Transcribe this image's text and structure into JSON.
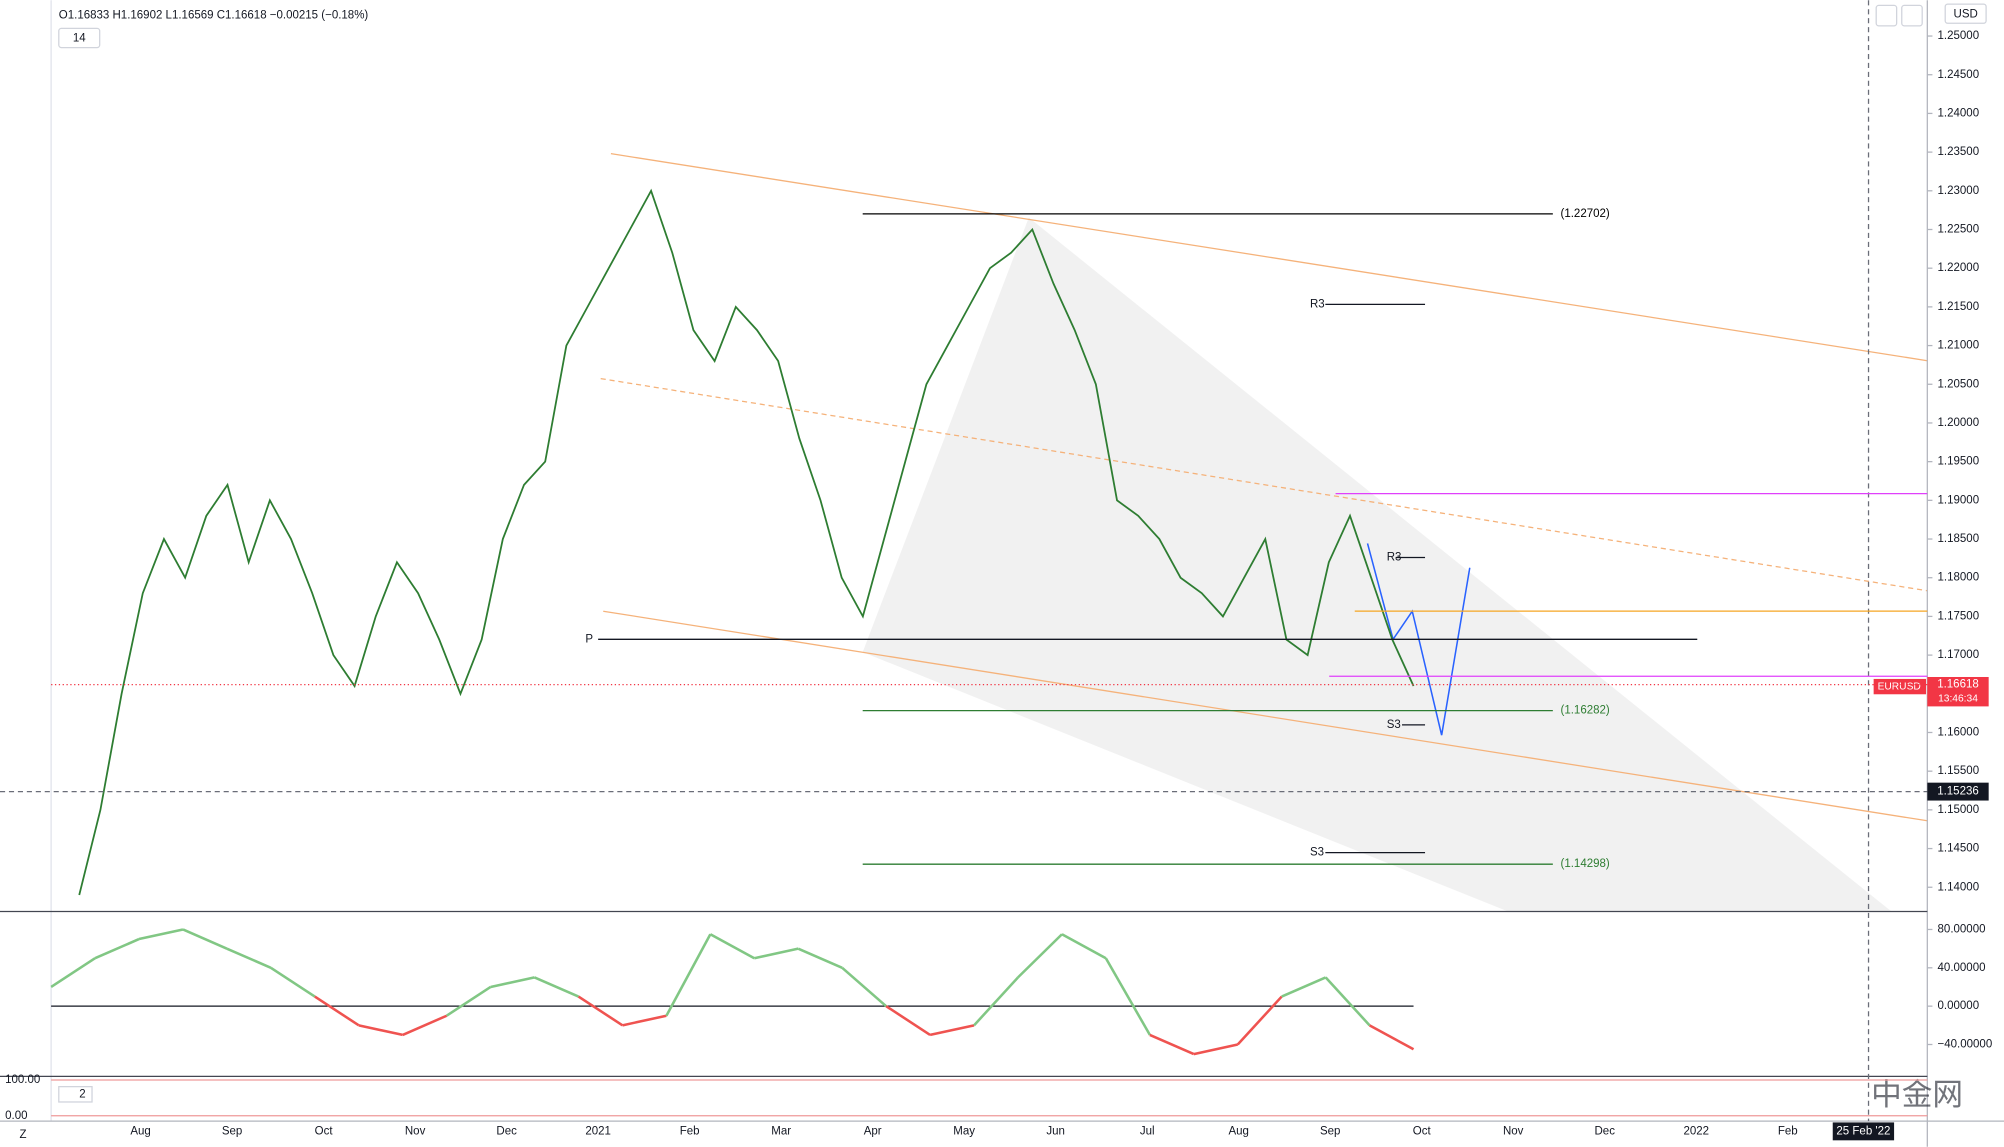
{
  "toolbar": {
    "ohlc": "O1.16833 H1.16902 L1.16569 C1.16618 −0.00215 (−0.18%)",
    "interval": "14",
    "currency": "USD",
    "corner": "Z"
  },
  "watermark": "中金网",
  "chart_data": [
    {
      "type": "line",
      "series": [
        {
          "name": "EURUSD",
          "color": "#2e7d32",
          "values": [
            1.139,
            1.15,
            1.165,
            1.178,
            1.185,
            1.18,
            1.188,
            1.192,
            1.182,
            1.19,
            1.185,
            1.178,
            1.17,
            1.166,
            1.175,
            1.182,
            1.178,
            1.172,
            1.165,
            1.172,
            1.185,
            1.192,
            1.195,
            1.21,
            1.215,
            1.22,
            1.225,
            1.23,
            1.222,
            1.212,
            1.208,
            1.215,
            1.212,
            1.208,
            1.198,
            1.19,
            1.18,
            1.175,
            1.185,
            1.195,
            1.205,
            1.21,
            1.215,
            1.22,
            1.222,
            1.225,
            1.218,
            1.212,
            1.205,
            1.19,
            1.188,
            1.185,
            1.18,
            1.178,
            1.175,
            1.18,
            1.185,
            1.172,
            1.17,
            1.182,
            1.188,
            1.18,
            1.172,
            1.166
          ]
        }
      ],
      "ylim": [
        1.13686,
        1.25462
      ],
      "yticks": [
        {
          "value": 1.14,
          "label": "1.14000"
        },
        {
          "value": 1.145,
          "label": "1.14500"
        },
        {
          "value": 1.15,
          "label": "1.15000"
        },
        {
          "value": 1.155,
          "label": "1.15500"
        },
        {
          "value": 1.16,
          "label": "1.16000"
        },
        {
          "value": 1.165,
          "label": "1.16500"
        },
        {
          "value": 1.17,
          "label": "1.17000"
        },
        {
          "value": 1.175,
          "label": "1.17500"
        },
        {
          "value": 1.18,
          "label": "1.18000"
        },
        {
          "value": 1.185,
          "label": "1.18500"
        },
        {
          "value": 1.19,
          "label": "1.19000"
        },
        {
          "value": 1.195,
          "label": "1.19500"
        },
        {
          "value": 1.2,
          "label": "1.20000"
        },
        {
          "value": 1.205,
          "label": "1.20500"
        },
        {
          "value": 1.21,
          "label": "1.21000"
        },
        {
          "value": 1.215,
          "label": "1.21500"
        },
        {
          "value": 1.22,
          "label": "1.22000"
        },
        {
          "value": 1.225,
          "label": "1.22500"
        },
        {
          "value": 1.23,
          "label": "1.23000"
        },
        {
          "value": 1.235,
          "label": "1.23500"
        },
        {
          "value": 1.24,
          "label": "1.24000"
        },
        {
          "value": 1.245,
          "label": "1.24500"
        },
        {
          "value": 1.25,
          "label": "1.25000"
        }
      ],
      "x_labels": [
        "Aug",
        "Sep",
        "Oct",
        "Nov",
        "Dec",
        "2021",
        "Feb",
        "Mar",
        "Apr",
        "May",
        "Jun",
        "Jul",
        "Aug",
        "Sep",
        "Oct",
        "Nov",
        "Dec",
        "2022",
        "Feb"
      ],
      "last_price": 1.16618,
      "last_price_color": "#f23645",
      "countdown": "13:46:34",
      "crosshair_price": 1.15236,
      "crosshair_date": "25 Feb '22",
      "levels": [
        {
          "label": "(1.22702)",
          "value": 1.22702,
          "color": "#000000"
        },
        {
          "label": "(1.16282)",
          "value": 1.16282,
          "color": "#2e7d32"
        },
        {
          "label": "(1.14298)",
          "value": 1.14298,
          "color": "#2e7d32"
        }
      ],
      "pivots": [
        {
          "label": "P",
          "value": 1.17204
        },
        {
          "label": "R3",
          "value": 1.21532
        },
        {
          "label": "R3",
          "value": 1.18261
        },
        {
          "label": "S3",
          "value": 1.16098
        },
        {
          "label": "S3",
          "value": 1.14447
        }
      ],
      "lines": [
        {
          "value": 1.17568,
          "color": "#f5a623"
        },
        {
          "value": 1.19087,
          "color": "#e040fb"
        },
        {
          "value": 1.16727,
          "color": "#e040fb"
        }
      ]
    },
    {
      "type": "line",
      "baseline": 0,
      "color_up": "#81c784",
      "color_down": "#ef5350",
      "values": [
        20,
        50,
        70,
        80,
        60,
        40,
        10,
        -20,
        -30,
        -10,
        20,
        30,
        10,
        -20,
        -10,
        75,
        50,
        60,
        40,
        0,
        -30,
        -20,
        30,
        75,
        50,
        -30,
        -50,
        -40,
        10,
        30,
        -20,
        -45
      ],
      "ylim": [
        -73.3,
        98.7
      ],
      "yticks": [
        {
          "value": 80,
          "label": "80.00000"
        },
        {
          "value": 40,
          "label": "40.00000"
        },
        {
          "value": 0,
          "label": "0.00000"
        },
        {
          "value": -40,
          "label": "−40.00000"
        }
      ]
    },
    {
      "type": "bands",
      "label": "2",
      "ylim": [
        -15,
        110
      ],
      "yticks": [
        {
          "value": 100,
          "label": "100.00"
        },
        {
          "value": 0,
          "label": "0.00"
        }
      ]
    }
  ]
}
